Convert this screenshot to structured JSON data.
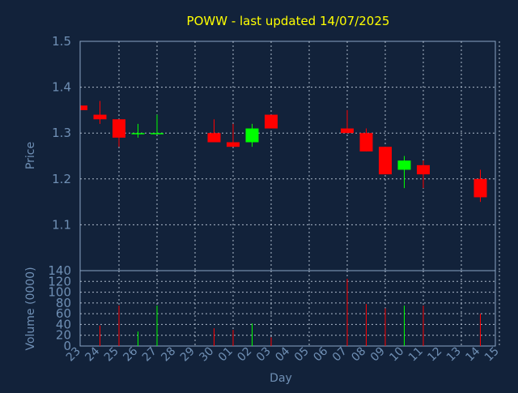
{
  "colors": {
    "background": "#12223a",
    "title": "#ffff00",
    "axis_text": "#6f8fb4",
    "up": "#00ff00",
    "down": "#ff0000",
    "grid": "#c8d4e4"
  },
  "chart_data": [
    {
      "type": "candlestick",
      "title": "POWW - last updated 14/07/2025",
      "ylabel": "Price",
      "ylim": [
        1.0,
        1.5
      ],
      "yticks": [
        "1.1",
        "1.2",
        "1.3",
        "1.4",
        "1.5"
      ],
      "grid": true,
      "x": [
        "23",
        "24",
        "25",
        "26",
        "27",
        "28",
        "29",
        "30",
        "01",
        "02",
        "03",
        "04",
        "05",
        "06",
        "07",
        "08",
        "09",
        "10",
        "11",
        "12",
        "13",
        "14",
        "15"
      ],
      "candles": [
        {
          "x": "23",
          "open": 1.36,
          "high": 1.36,
          "low": 1.35,
          "close": 1.35
        },
        {
          "x": "24",
          "open": 1.34,
          "high": 1.37,
          "low": 1.32,
          "close": 1.33
        },
        {
          "x": "25",
          "open": 1.33,
          "high": 1.33,
          "low": 1.27,
          "close": 1.29
        },
        {
          "x": "26",
          "open": 1.3,
          "high": 1.32,
          "low": 1.29,
          "close": 1.3
        },
        {
          "x": "27",
          "open": 1.3,
          "high": 1.34,
          "low": 1.3,
          "close": 1.3
        },
        {
          "x": "30",
          "open": 1.3,
          "high": 1.33,
          "low": 1.28,
          "close": 1.28
        },
        {
          "x": "01",
          "open": 1.28,
          "high": 1.32,
          "low": 1.27,
          "close": 1.27
        },
        {
          "x": "02",
          "open": 1.28,
          "high": 1.32,
          "low": 1.27,
          "close": 1.31
        },
        {
          "x": "03",
          "open": 1.34,
          "high": 1.34,
          "low": 1.31,
          "close": 1.31
        },
        {
          "x": "07",
          "open": 1.31,
          "high": 1.35,
          "low": 1.3,
          "close": 1.3
        },
        {
          "x": "08",
          "open": 1.3,
          "high": 1.31,
          "low": 1.26,
          "close": 1.26
        },
        {
          "x": "09",
          "open": 1.27,
          "high": 1.27,
          "low": 1.21,
          "close": 1.21
        },
        {
          "x": "10",
          "open": 1.22,
          "high": 1.25,
          "low": 1.18,
          "close": 1.24
        },
        {
          "x": "11",
          "open": 1.23,
          "high": 1.24,
          "low": 1.18,
          "close": 1.21
        },
        {
          "x": "14",
          "open": 1.2,
          "high": 1.22,
          "low": 1.15,
          "close": 1.16
        }
      ]
    },
    {
      "type": "bar",
      "ylabel": "Volume (0000)",
      "xlabel": "Day",
      "ylim": [
        0,
        140
      ],
      "yticks": [
        "0",
        "20",
        "40",
        "60",
        "80",
        "100",
        "120",
        "140"
      ],
      "grid": true,
      "categories": [
        "23",
        "24",
        "25",
        "26",
        "27",
        "28",
        "29",
        "30",
        "01",
        "02",
        "03",
        "04",
        "05",
        "06",
        "07",
        "08",
        "09",
        "10",
        "11",
        "12",
        "13",
        "14",
        "15"
      ],
      "bars": [
        {
          "x": "24",
          "value": 38,
          "direction": "down"
        },
        {
          "x": "25",
          "value": 75,
          "direction": "down"
        },
        {
          "x": "26",
          "value": 27,
          "direction": "up"
        },
        {
          "x": "27",
          "value": 75,
          "direction": "up"
        },
        {
          "x": "30",
          "value": 33,
          "direction": "down"
        },
        {
          "x": "01",
          "value": 30,
          "direction": "down"
        },
        {
          "x": "02",
          "value": 42,
          "direction": "up"
        },
        {
          "x": "03",
          "value": 16,
          "direction": "down"
        },
        {
          "x": "07",
          "value": 125,
          "direction": "down"
        },
        {
          "x": "08",
          "value": 78,
          "direction": "down"
        },
        {
          "x": "09",
          "value": 70,
          "direction": "down"
        },
        {
          "x": "10",
          "value": 75,
          "direction": "up"
        },
        {
          "x": "11",
          "value": 75,
          "direction": "down"
        },
        {
          "x": "14",
          "value": 60,
          "direction": "down"
        }
      ]
    }
  ]
}
